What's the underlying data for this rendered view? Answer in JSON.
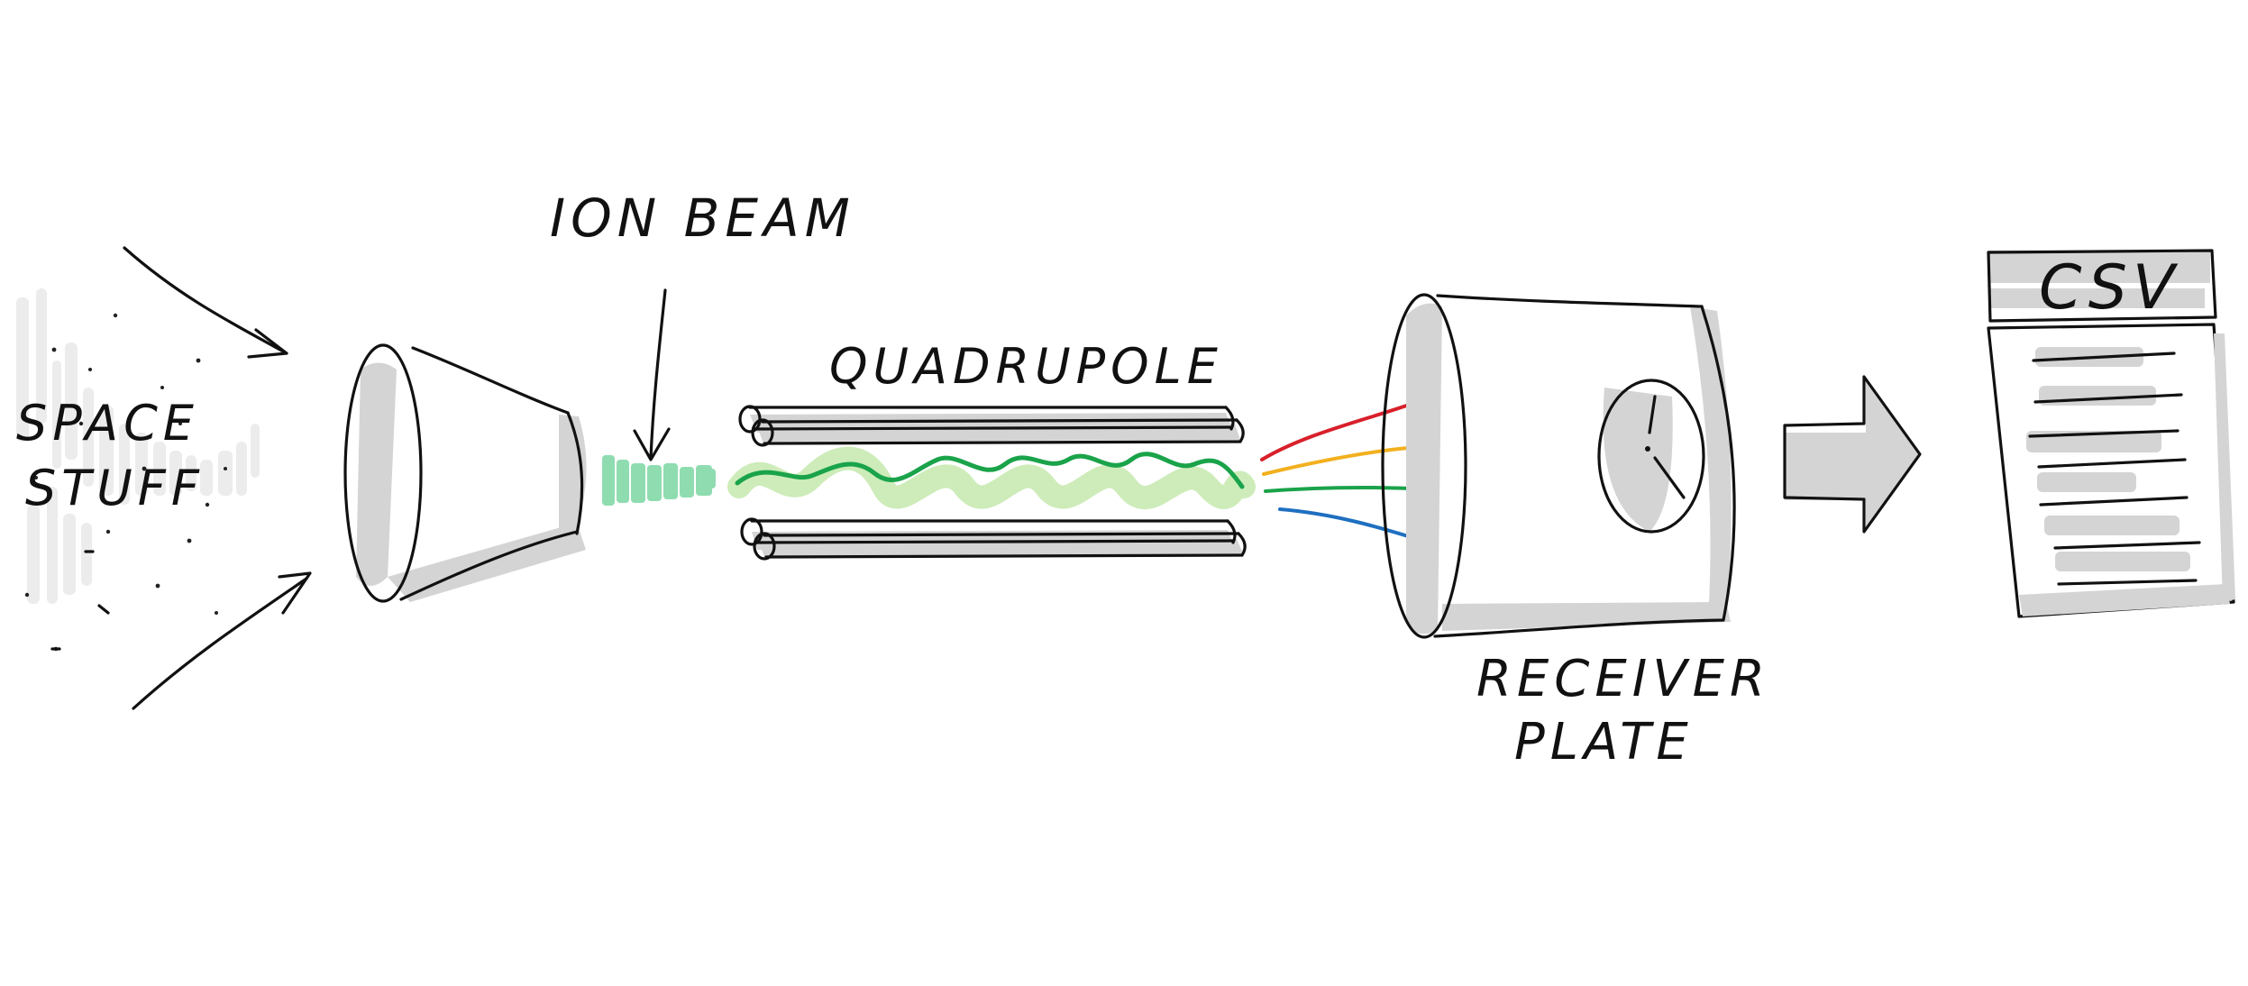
{
  "labels": {
    "space_stuff_line1": "SPACE",
    "space_stuff_line2": "STUFF",
    "ion_beam": "ION BEAM",
    "quadrupole": "QUADRUPOLE",
    "receiver_line1": "RECEIVER",
    "receiver_line2": "PLATE",
    "csv": "CSV"
  },
  "colors": {
    "ink": "#111111",
    "shade": "#d4d4d4",
    "ion_beam": "#8fdcb0",
    "quadrupole_wave": "#1aa34a",
    "quadrupole_wave_glow": "#cdecb9",
    "ray_red": "#d8202a",
    "ray_yellow": "#f2b01e",
    "ray_green": "#1aa34a",
    "ray_blue": "#1f6fc0"
  }
}
